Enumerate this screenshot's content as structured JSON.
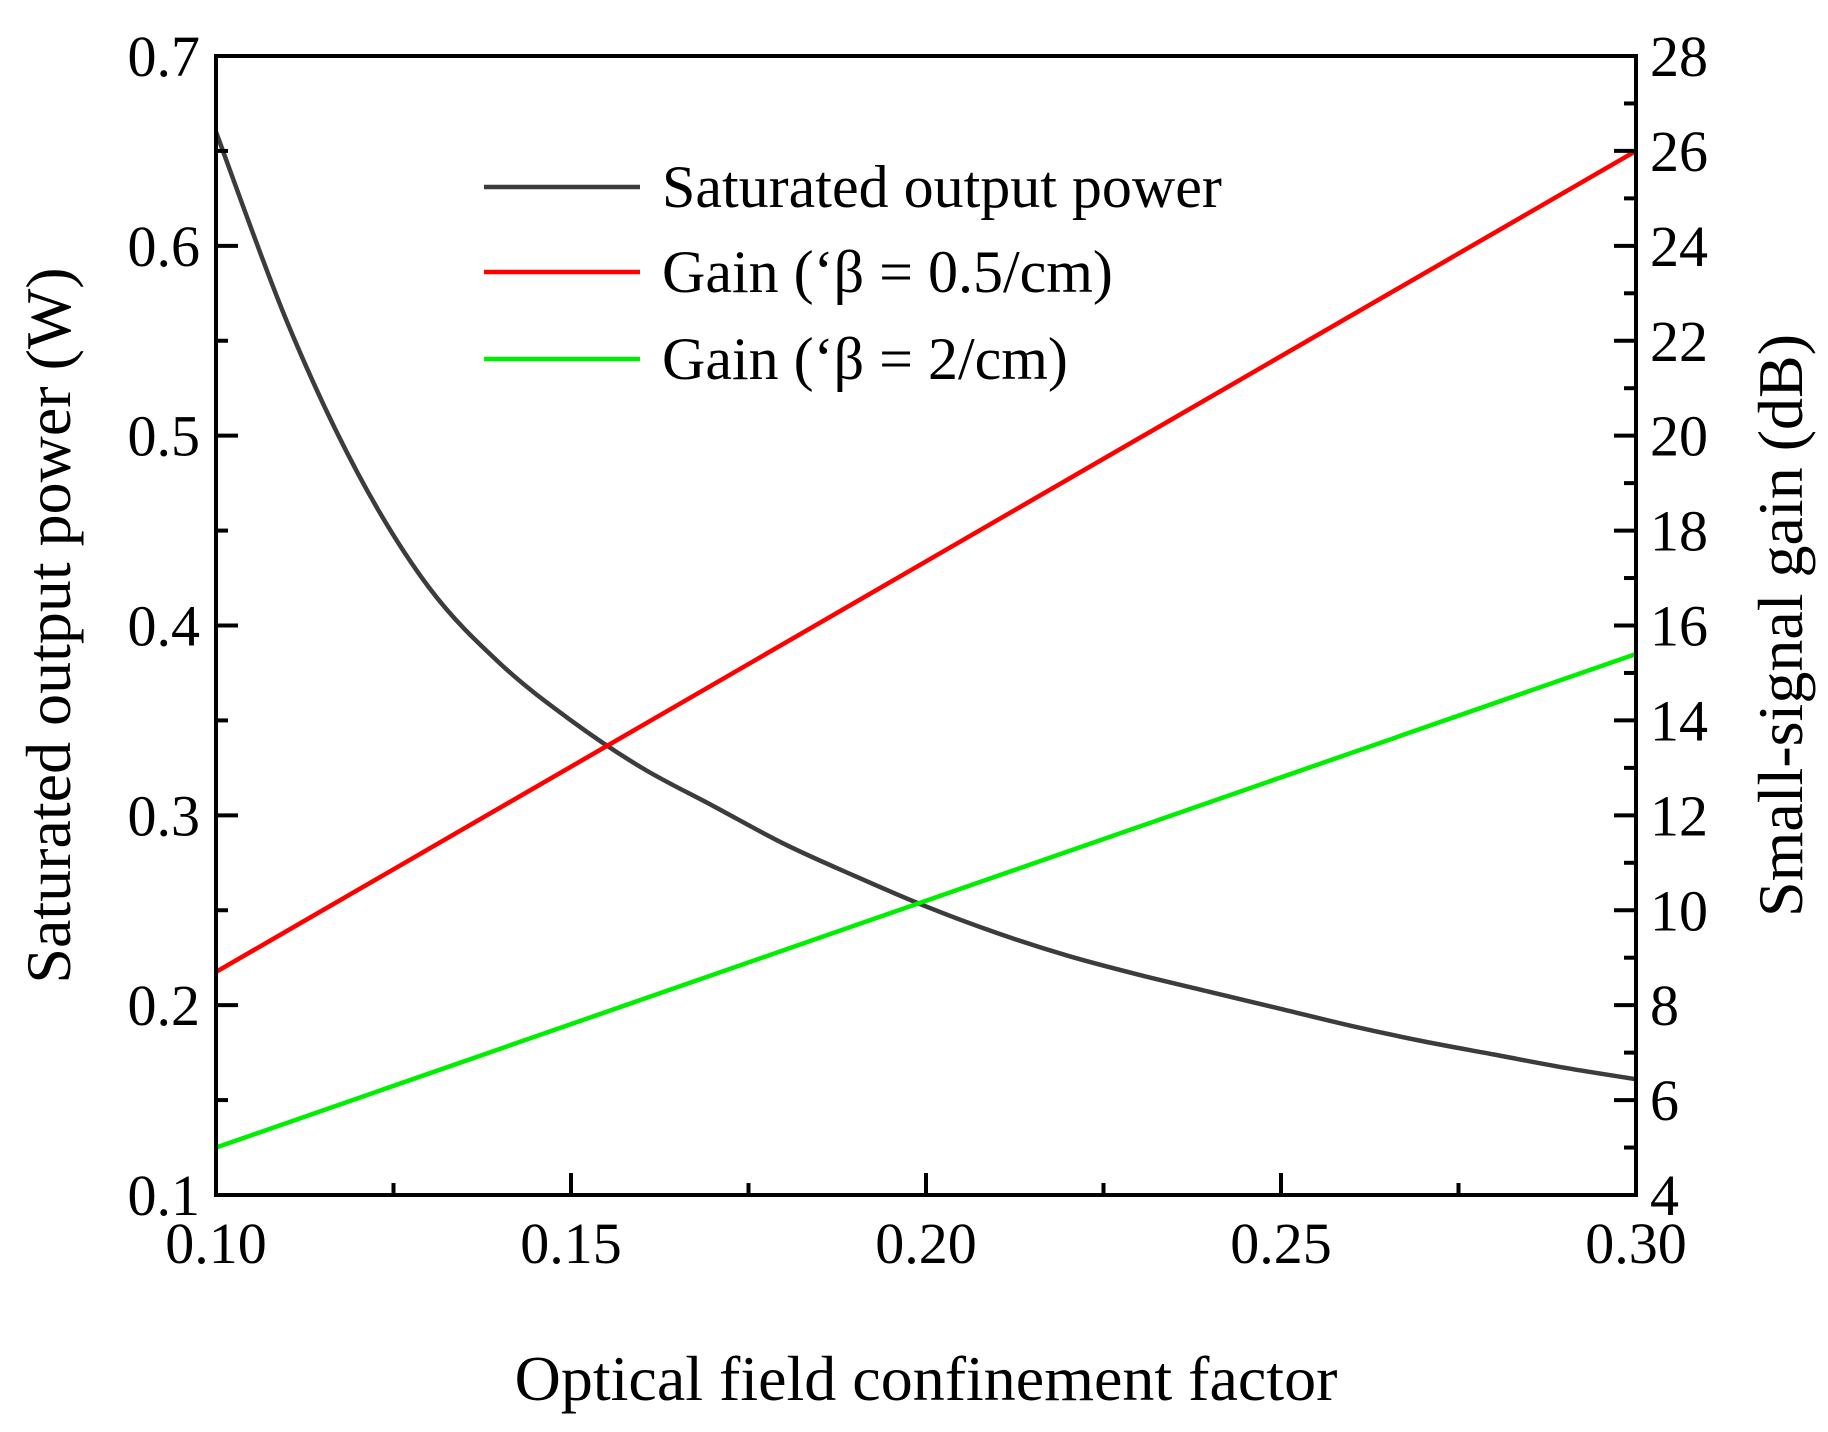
{
  "chart_data": {
    "type": "line",
    "xlabel": "Optical field confinement factor",
    "ylabel_left": "Saturated output power (W)",
    "ylabel_right": "Small-signal gain (dB)",
    "xlim": [
      0.1,
      0.3
    ],
    "ylim_left": [
      0.1,
      0.7
    ],
    "ylim_right": [
      4,
      28
    ],
    "x_ticks": [
      "0.10",
      "0.15",
      "0.20",
      "0.25",
      "0.30"
    ],
    "x_tick_values": [
      0.1,
      0.15,
      0.2,
      0.25,
      0.3
    ],
    "y_left_ticks": [
      "0.1",
      "0.2",
      "0.3",
      "0.4",
      "0.5",
      "0.6",
      "0.7"
    ],
    "y_left_tick_values": [
      0.1,
      0.2,
      0.3,
      0.4,
      0.5,
      0.6,
      0.7
    ],
    "y_right_ticks": [
      "4",
      "6",
      "8",
      "10",
      "12",
      "14",
      "16",
      "18",
      "20",
      "22",
      "24",
      "26",
      "28"
    ],
    "y_right_tick_values": [
      4,
      6,
      8,
      10,
      12,
      14,
      16,
      18,
      20,
      22,
      24,
      26,
      28
    ],
    "grid": false,
    "legend_position": "top-center",
    "series": [
      {
        "name": "Saturated output power",
        "axis": "left",
        "color": "#3c3c3c",
        "x": [
          0.1,
          0.11,
          0.12,
          0.13,
          0.14,
          0.15,
          0.16,
          0.17,
          0.18,
          0.19,
          0.2,
          0.21,
          0.22,
          0.23,
          0.24,
          0.25,
          0.26,
          0.27,
          0.28,
          0.29,
          0.3
        ],
        "y": [
          0.66,
          0.56,
          0.48,
          0.42,
          0.38,
          0.35,
          0.325,
          0.305,
          0.285,
          0.268,
          0.252,
          0.238,
          0.226,
          0.216,
          0.207,
          0.198,
          0.189,
          0.181,
          0.174,
          0.167,
          0.161
        ]
      },
      {
        "name": "Gain (‘β = 0.5/cm)",
        "axis": "right",
        "color": "#ff0000",
        "x": [
          0.1,
          0.3
        ],
        "y": [
          8.7,
          26.0
        ]
      },
      {
        "name": "Gain (‘β = 2/cm)",
        "axis": "right",
        "color": "#00ee00",
        "x": [
          0.1,
          0.3
        ],
        "y": [
          5.0,
          15.4
        ]
      }
    ]
  }
}
